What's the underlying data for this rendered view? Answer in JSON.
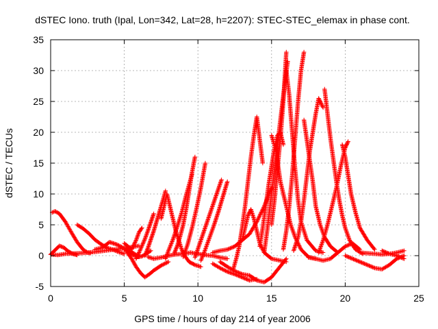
{
  "chart_data": {
    "type": "scatter",
    "title": "dSTEC Iono. truth (Ipal, Lon=342, Lat=28, h=2207): STEC-STEC_elemax in phase cont.",
    "xlabel": "GPS time / hours of day 214 of year 2006",
    "ylabel": "dSTEC  / TECUs",
    "xlim": [
      0,
      25
    ],
    "ylim": [
      -5,
      35
    ],
    "x_ticks": [
      "0",
      "5",
      "10",
      "15",
      "20",
      "25"
    ],
    "y_ticks": [
      "-5",
      "0",
      "5",
      "10",
      "15",
      "20",
      "25",
      "30",
      "35"
    ],
    "grid": true,
    "marker": "+",
    "color": "#ff0000",
    "series": [
      {
        "x": [
          0.1,
          0.3,
          0.6,
          1.0,
          1.4,
          1.8,
          2.2,
          2.5,
          2.7
        ],
        "y": [
          7.0,
          7.2,
          6.8,
          5.5,
          3.8,
          2.2,
          1.0,
          0.5,
          0.4
        ]
      },
      {
        "x": [
          0.0,
          0.3,
          0.6,
          0.9,
          1.2,
          1.5,
          1.8
        ],
        "y": [
          0.2,
          0.9,
          1.6,
          1.3,
          0.7,
          0.3,
          0.1
        ]
      },
      {
        "x": [
          0.0,
          0.5,
          1.0,
          2.0,
          3.0,
          4.0,
          5.0,
          5.5,
          6.0
        ],
        "y": [
          0.2,
          0.1,
          0.3,
          0.4,
          0.6,
          0.9,
          1.2,
          1.4,
          1.6
        ]
      },
      {
        "x": [
          1.8,
          2.2,
          2.6,
          3.0,
          3.4,
          3.8,
          4.2,
          4.6,
          5.0
        ],
        "y": [
          5.0,
          4.4,
          3.6,
          2.6,
          1.9,
          1.3,
          1.0,
          0.6,
          0.3
        ]
      },
      {
        "x": [
          3.0,
          3.5,
          4.0,
          4.5,
          5.0,
          5.5,
          6.0
        ],
        "y": [
          1.0,
          1.3,
          2.2,
          1.8,
          1.2,
          0.6,
          -0.2
        ]
      },
      {
        "x": [
          5.0,
          5.3,
          5.6,
          5.9,
          6.2,
          6.5,
          6.8
        ],
        "y": [
          1.0,
          0.5,
          0.1,
          -0.2,
          -0.1,
          0.3,
          0.8
        ]
      },
      {
        "x": [
          5.2,
          5.5,
          5.8,
          6.1,
          6.4,
          6.7,
          7.0,
          7.5,
          8.0
        ],
        "y": [
          0.5,
          -0.5,
          -1.8,
          -2.8,
          -3.5,
          -3.0,
          -2.4,
          -1.6,
          -1.0
        ]
      },
      {
        "x": [
          5.0,
          5.5,
          5.8,
          6.0,
          6.2
        ],
        "y": [
          2.0,
          1.0,
          2.5,
          3.8,
          4.5
        ]
      },
      {
        "x": [
          5.8,
          6.0,
          6.2,
          6.4,
          6.6,
          6.8,
          7.0
        ],
        "y": [
          -0.5,
          0.5,
          1.6,
          2.7,
          4.0,
          5.4,
          6.8
        ]
      },
      {
        "x": [
          6.4,
          6.6,
          6.8,
          7.0,
          7.2,
          7.4,
          7.6,
          7.8
        ],
        "y": [
          0.0,
          1.2,
          2.6,
          4.0,
          5.6,
          7.2,
          8.8,
          10.5
        ]
      },
      {
        "x": [
          6.6,
          7.0,
          7.5,
          8.0,
          8.5,
          9.0,
          9.5,
          10.0,
          10.5,
          11.0,
          11.5,
          12.0
        ],
        "y": [
          -0.2,
          -0.5,
          -0.3,
          0.0,
          0.2,
          0.3,
          0.5,
          0.3,
          0.1,
          0.0,
          -0.3,
          -0.5
        ]
      },
      {
        "x": [
          7.8,
          8.0,
          8.3,
          8.6,
          8.9,
          9.2,
          9.6
        ],
        "y": [
          -0.5,
          0.8,
          2.6,
          4.7,
          7.0,
          9.8,
          13.2
        ]
      },
      {
        "x": [
          8.4,
          8.6,
          8.8,
          9.0,
          9.2,
          9.4,
          9.6,
          9.8
        ],
        "y": [
          0.4,
          1.6,
          3.2,
          5.0,
          7.5,
          10.5,
          13.5,
          16.0
        ]
      },
      {
        "x": [
          9.0,
          9.3,
          9.6,
          9.9,
          10.2,
          10.5
        ],
        "y": [
          -0.2,
          1.8,
          4.5,
          7.6,
          11.0,
          15.0
        ]
      },
      {
        "x": [
          7.5,
          7.7,
          7.9,
          8.1,
          8.3,
          8.5,
          8.7,
          8.9,
          9.1,
          9.4,
          9.8,
          10.2
        ],
        "y": [
          6.0,
          8.0,
          10.0,
          8.0,
          6.0,
          4.0,
          2.5,
          1.0,
          0.0,
          -1.0,
          -1.5,
          -1.8
        ]
      },
      {
        "x": [
          9.8,
          10.1,
          10.4,
          10.7,
          11.0,
          11.3,
          11.6
        ],
        "y": [
          -0.3,
          1.8,
          3.9,
          6.0,
          8.1,
          10.2,
          12.3
        ]
      },
      {
        "x": [
          10.2,
          10.5,
          10.8,
          11.1,
          11.4,
          11.7,
          12.0
        ],
        "y": [
          -0.8,
          1.0,
          3.0,
          5.0,
          7.2,
          9.6,
          12.0
        ]
      },
      {
        "x": [
          11.0,
          11.5,
          12.0,
          12.5,
          13.0,
          13.5,
          14.0
        ],
        "y": [
          -1.3,
          -2.0,
          -2.6,
          -3.0,
          -3.5,
          -4.0,
          -3.8
        ]
      },
      {
        "x": [
          11.0,
          11.5,
          12.0,
          12.5,
          13.0,
          13.5,
          14.0,
          14.5,
          15.0
        ],
        "y": [
          0.5,
          0.8,
          1.0,
          1.5,
          2.5,
          3.5,
          5.5,
          8.0,
          11.0
        ]
      },
      {
        "x": [
          13.0,
          13.2,
          13.4,
          13.6,
          13.8,
          14.0,
          14.2,
          14.5,
          15.0,
          16.0
        ],
        "y": [
          2.5,
          4.5,
          6.5,
          7.5,
          6.0,
          4.0,
          2.0,
          0.5,
          -0.5,
          -1.0
        ]
      },
      {
        "x": [
          12.4,
          12.6,
          12.8,
          13.0,
          13.2,
          13.4,
          13.6,
          13.8,
          14.0,
          14.4
        ],
        "y": [
          -2.2,
          -0.5,
          1.5,
          4.5,
          8.0,
          12.0,
          16.0,
          19.5,
          22.5,
          15.0
        ]
      },
      {
        "x": [
          11.5,
          12.0,
          12.5,
          13.0,
          13.5,
          14.0,
          14.5,
          15.0,
          15.5,
          16.0
        ],
        "y": [
          -1.0,
          -1.8,
          -2.5,
          -3.0,
          -3.2,
          -4.0,
          -4.3,
          -3.5,
          -2.0,
          -0.5
        ]
      },
      {
        "x": [
          14.2,
          14.4,
          14.6,
          14.8,
          15.0,
          15.2,
          15.4,
          15.6,
          15.8
        ],
        "y": [
          1.5,
          4.5,
          8.0,
          11.5,
          14.5,
          17.5,
          19.5,
          20.0,
          18.0
        ]
      },
      {
        "x": [
          14.5,
          14.7,
          14.9,
          15.1,
          15.3,
          15.5,
          15.7,
          15.9,
          16.1
        ],
        "y": [
          0.5,
          4.0,
          8.0,
          12.0,
          16.0,
          20.0,
          24.0,
          28.0,
          31.5
        ]
      },
      {
        "x": [
          15.0,
          15.2,
          15.4,
          15.6,
          15.8,
          16.0
        ],
        "y": [
          5.0,
          9.0,
          14.0,
          19.0,
          25.0,
          33.0
        ]
      },
      {
        "x": [
          15.0,
          15.3,
          15.6,
          16.0,
          16.3,
          16.6,
          17.0,
          17.5,
          18.0
        ],
        "y": [
          19.5,
          17.0,
          12.0,
          8.0,
          5.0,
          3.0,
          1.0,
          -0.2,
          -0.5
        ]
      },
      {
        "x": [
          16.0,
          16.2,
          16.4,
          16.6,
          16.8,
          17.0,
          17.4,
          18.0,
          18.5
        ],
        "y": [
          30.0,
          26.0,
          20.0,
          14.0,
          9.0,
          5.5,
          2.5,
          0.8,
          0.5
        ]
      },
      {
        "x": [
          15.8,
          16.0,
          16.2,
          16.4,
          16.6,
          16.8,
          17.0,
          17.2
        ],
        "y": [
          1.0,
          4.0,
          8.0,
          13.0,
          19.0,
          25.0,
          30.0,
          33.0
        ]
      },
      {
        "x": [
          16.5,
          16.8,
          17.0,
          17.2,
          17.4,
          17.6,
          17.8,
          18.0,
          18.2,
          18.5
        ],
        "y": [
          0.8,
          3.0,
          5.5,
          9.0,
          13.0,
          17.0,
          20.0,
          23.0,
          25.5,
          24.0
        ]
      },
      {
        "x": [
          17.2,
          17.5,
          17.8,
          18.0,
          18.3,
          18.6,
          19.0,
          19.5
        ],
        "y": [
          22.0,
          17.0,
          12.0,
          8.0,
          5.0,
          3.0,
          1.5,
          0.5
        ]
      },
      {
        "x": [
          18.6,
          18.8,
          19.0,
          19.2,
          19.4,
          19.6,
          19.8,
          20.0,
          20.3,
          20.7,
          21.2
        ],
        "y": [
          27.0,
          23.0,
          19.0,
          15.5,
          12.0,
          9.0,
          6.5,
          4.5,
          2.5,
          1.0,
          0.3
        ]
      },
      {
        "x": [
          18.2,
          18.5,
          18.8,
          19.1,
          19.4,
          19.7,
          20.0,
          20.2
        ],
        "y": [
          0.5,
          2.5,
          5.0,
          8.0,
          11.0,
          14.5,
          17.5,
          18.5
        ]
      },
      {
        "x": [
          19.8,
          20.0,
          20.2,
          20.4,
          20.7,
          21.0,
          21.5,
          22.0
        ],
        "y": [
          18.0,
          16.0,
          13.0,
          10.0,
          7.0,
          4.5,
          2.5,
          1.0
        ]
      },
      {
        "x": [
          17.5,
          18.0,
          18.5,
          19.0,
          19.5,
          20.0,
          20.5,
          21.0
        ],
        "y": [
          -0.3,
          -0.5,
          -0.8,
          -0.5,
          0.5,
          1.5,
          2.0,
          1.0
        ]
      },
      {
        "x": [
          20.0,
          20.5,
          21.0,
          21.5,
          22.0,
          22.5,
          23.0,
          23.5,
          24.0
        ],
        "y": [
          0.0,
          -0.5,
          -1.0,
          -1.5,
          -2.0,
          -2.2,
          -1.5,
          -0.5,
          0.0
        ]
      },
      {
        "x": [
          21.0,
          21.5,
          22.0,
          22.5,
          23.0,
          23.5,
          24.0
        ],
        "y": [
          0.5,
          0.4,
          0.3,
          0.2,
          0.3,
          0.5,
          0.8
        ]
      },
      {
        "x": [
          22.5,
          23.0,
          23.5,
          24.0
        ],
        "y": [
          0.8,
          0.3,
          0.0,
          -0.5
        ]
      }
    ]
  }
}
